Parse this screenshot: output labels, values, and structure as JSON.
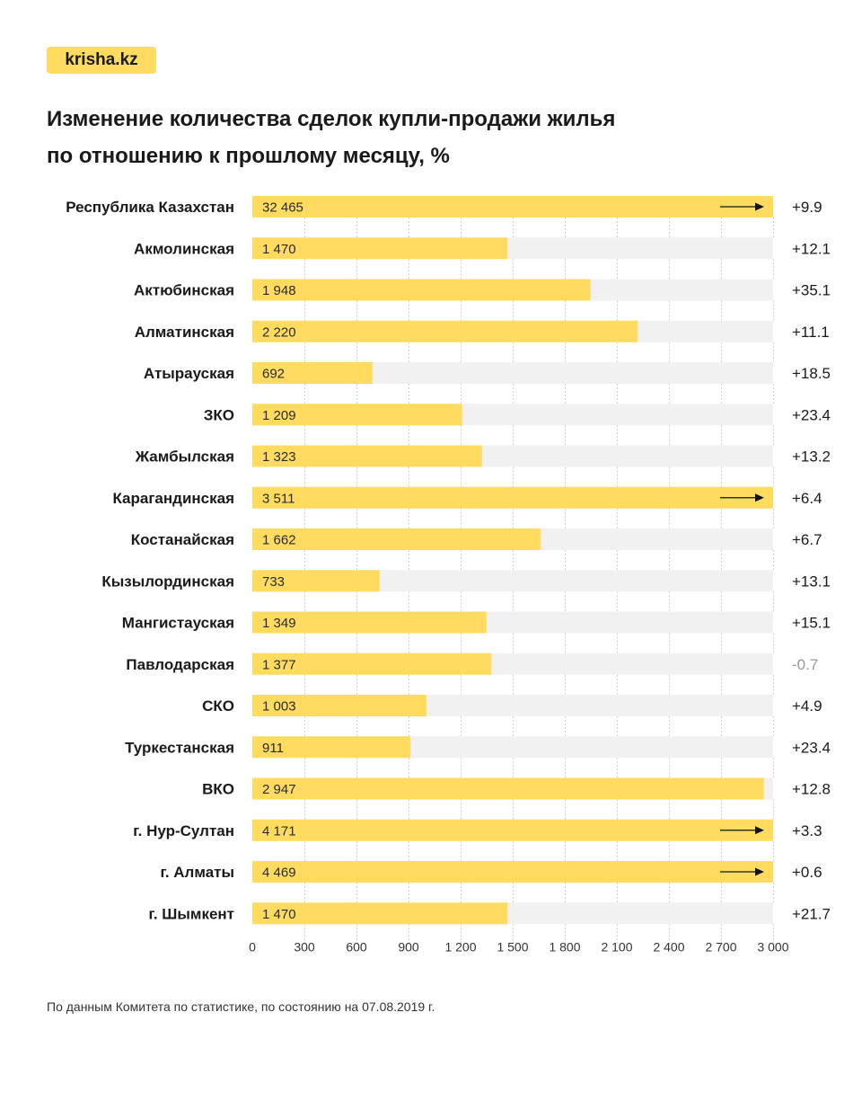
{
  "logo": {
    "text": "krisha.kz",
    "color": "#FFDC5F"
  },
  "header": {
    "title_line1": "Изменение количества сделок купли-продажи жилья",
    "title_line2": "по отношению к прошлому месяцу, %"
  },
  "chart_data": {
    "type": "bar",
    "orientation": "horizontal",
    "title": "Изменение количества сделок купли-продажи жилья по отношению к прошлому месяцу, %",
    "xlabel": "",
    "ylabel": "",
    "xlim": [
      0,
      3000
    ],
    "x_ticks": [
      0,
      300,
      600,
      900,
      1200,
      1500,
      1800,
      2100,
      2400,
      2700,
      3000
    ],
    "x_tick_labels": [
      "0",
      "300",
      "600",
      "900",
      "1 200",
      "1 500",
      "1 800",
      "2 100",
      "2 400",
      "2 700",
      "3 000"
    ],
    "grid": "vertical dotted",
    "colors": {
      "bar": "#FFDC5F",
      "track": "#F1F1F2",
      "positive_change": "#1a1a1a",
      "negative_change": "#999999",
      "grid": "#d0d0d0"
    },
    "categories": [
      "Республика Казахстан",
      "Акмолинская",
      "Актюбинская",
      "Алматинская",
      "Атырауская",
      "ЗКО",
      "Жамбылская",
      "Карагандинская",
      "Костанайская",
      "Кызылординская",
      "Мангистауская",
      "Павлодарская",
      "СКО",
      "Туркестанская",
      "ВКО",
      "г. Нур-Султан",
      "г. Алматы",
      "г. Шымкент"
    ],
    "values": [
      32465,
      1470,
      1948,
      2220,
      692,
      1209,
      1323,
      3511,
      1662,
      733,
      1349,
      1377,
      1003,
      911,
      2947,
      4171,
      4469,
      1470
    ],
    "value_labels": [
      "32 465",
      "1 470",
      "1 948",
      "2 220",
      "692",
      "1 209",
      "1 323",
      "3 511",
      "1 662",
      "733",
      "1 349",
      "1 377",
      "1 003",
      "911",
      "2 947",
      "4 171",
      "4 469",
      "1 470"
    ],
    "overflow": [
      true,
      false,
      false,
      false,
      false,
      false,
      false,
      true,
      false,
      false,
      false,
      false,
      false,
      false,
      false,
      true,
      true,
      false
    ],
    "change_percent": [
      9.9,
      12.1,
      35.1,
      11.1,
      18.5,
      23.4,
      13.2,
      6.4,
      6.7,
      13.1,
      15.1,
      -0.7,
      4.9,
      23.4,
      12.8,
      3.3,
      0.6,
      21.7
    ],
    "change_labels": [
      "+9.9",
      "+12.1",
      "+35.1",
      "+11.1",
      "+18.5",
      "+23.4",
      "+13.2",
      "+6.4",
      "+6.7",
      "+13.1",
      "+15.1",
      "-0.7",
      "+4.9",
      "+23.4",
      "+12.8",
      "+3.3",
      "+0.6",
      "+21.7"
    ]
  },
  "footer": {
    "source": "По данным Комитета по статистике, по состоянию на 07.08.2019 г."
  }
}
